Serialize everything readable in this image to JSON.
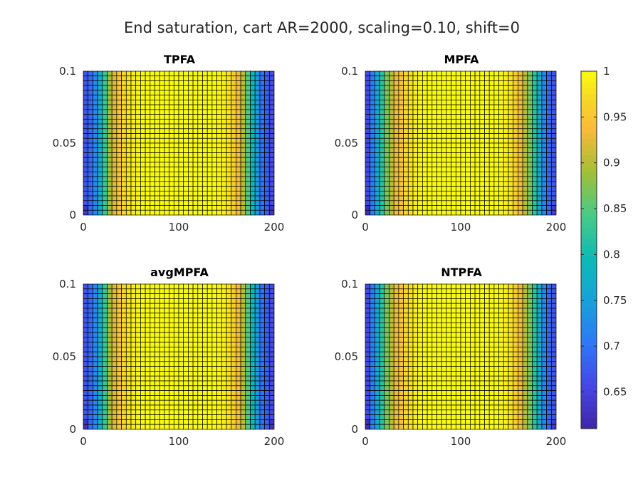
{
  "chart_data": {
    "type": "heatmap",
    "title": "End saturation, cart AR=2000, scaling=0.10, shift=0",
    "colorbar": {
      "colormap": "parula",
      "range": [
        0.61,
        1.0
      ],
      "ticks": [
        0.65,
        0.7,
        0.75,
        0.8,
        0.85,
        0.9,
        0.95,
        1
      ],
      "tick_labels": [
        "0.65",
        "0.7",
        "0.75",
        "0.8",
        "0.85",
        "0.9",
        "0.95",
        "1"
      ]
    },
    "grid": {
      "nx": 40,
      "ny": 30,
      "edgecolor": "#000000"
    },
    "panels": [
      {
        "name": "TPFA",
        "xlim": [
          0,
          200
        ],
        "ylim": [
          0,
          0.1
        ],
        "xticks": [
          0,
          100,
          200
        ],
        "xtick_labels": [
          "0",
          "100",
          "200"
        ],
        "yticks": [
          0,
          0.05,
          0.1
        ],
        "ytick_labels": [
          "0",
          "0.05",
          "0.1"
        ],
        "column_values": [
          0.67,
          0.69,
          0.72,
          0.77,
          0.83,
          0.89,
          0.92,
          0.95,
          0.97,
          0.98,
          0.99,
          0.995,
          1,
          1,
          1,
          1,
          1,
          1,
          1,
          1,
          1,
          1,
          1,
          1,
          1,
          1,
          1,
          1,
          0.995,
          0.99,
          0.98,
          0.96,
          0.93,
          0.9,
          0.85,
          0.79,
          0.74,
          0.7,
          0.68,
          0.66
        ]
      },
      {
        "name": "MPFA",
        "xlim": [
          0,
          200
        ],
        "ylim": [
          0,
          0.1
        ],
        "xticks": [
          0,
          100,
          200
        ],
        "xtick_labels": [
          "0",
          "100",
          "200"
        ],
        "yticks": [
          0,
          0.05,
          0.1
        ],
        "ytick_labels": [
          "0",
          "0.05",
          "0.1"
        ],
        "column_values": [
          0.66,
          0.71,
          0.76,
          0.82,
          0.87,
          0.9,
          0.93,
          0.95,
          0.97,
          0.98,
          0.99,
          0.995,
          1,
          1,
          1,
          1,
          1,
          1,
          1,
          1,
          1,
          1,
          1,
          1,
          1,
          1,
          1,
          1,
          0.995,
          0.99,
          0.98,
          0.96,
          0.93,
          0.9,
          0.87,
          0.82,
          0.77,
          0.72,
          0.69,
          0.67
        ]
      },
      {
        "name": "avgMPFA",
        "xlim": [
          0,
          200
        ],
        "ylim": [
          0,
          0.1
        ],
        "xticks": [
          0,
          100,
          200
        ],
        "xtick_labels": [
          "0",
          "100",
          "200"
        ],
        "yticks": [
          0,
          0.05,
          0.1
        ],
        "ytick_labels": [
          "0",
          "0.05",
          "0.1"
        ],
        "column_values": [
          0.67,
          0.69,
          0.72,
          0.77,
          0.83,
          0.89,
          0.92,
          0.95,
          0.97,
          0.98,
          0.99,
          0.995,
          1,
          1,
          1,
          1,
          1,
          1,
          1,
          1,
          1,
          1,
          1,
          1,
          1,
          1,
          1,
          1,
          0.995,
          0.99,
          0.98,
          0.96,
          0.93,
          0.9,
          0.85,
          0.79,
          0.74,
          0.7,
          0.68,
          0.66
        ]
      },
      {
        "name": "NTPFA",
        "xlim": [
          0,
          200
        ],
        "ylim": [
          0,
          0.1
        ],
        "xticks": [
          0,
          100,
          200
        ],
        "xtick_labels": [
          "0",
          "100",
          "200"
        ],
        "yticks": [
          0,
          0.05,
          0.1
        ],
        "ytick_labels": [
          "0",
          "0.05",
          "0.1"
        ],
        "column_values": [
          0.66,
          0.71,
          0.76,
          0.82,
          0.87,
          0.9,
          0.93,
          0.95,
          0.97,
          0.98,
          0.99,
          0.995,
          1,
          1,
          1,
          1,
          1,
          1,
          1,
          1,
          1,
          1,
          1,
          1,
          1,
          1,
          1,
          1,
          0.995,
          0.99,
          0.98,
          0.96,
          0.93,
          0.9,
          0.87,
          0.82,
          0.77,
          0.72,
          0.69,
          0.67
        ]
      }
    ]
  }
}
